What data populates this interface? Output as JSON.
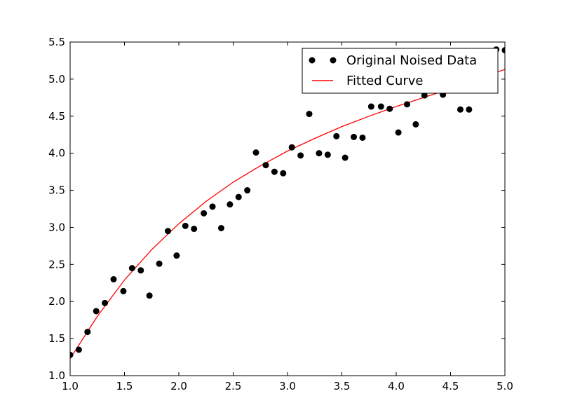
{
  "chart_data": {
    "type": "scatter",
    "title": "",
    "xlabel": "",
    "ylabel": "",
    "xlim": [
      1.0,
      5.0
    ],
    "ylim": [
      1.0,
      5.5
    ],
    "x_ticks": [
      "1.0",
      "1.5",
      "2.0",
      "2.5",
      "3.0",
      "3.5",
      "4.0",
      "4.5",
      "5.0"
    ],
    "y_ticks": [
      "1.0",
      "1.5",
      "2.0",
      "2.5",
      "3.0",
      "3.5",
      "4.0",
      "4.5",
      "5.0",
      "5.5"
    ],
    "grid": false,
    "legend_position": "top-right",
    "series": [
      {
        "name": "Original Noised Data",
        "kind": "scatter",
        "color": "#000000",
        "x": [
          1.0,
          1.08,
          1.16,
          1.24,
          1.32,
          1.4,
          1.49,
          1.57,
          1.65,
          1.73,
          1.82,
          1.9,
          1.98,
          2.06,
          2.14,
          2.23,
          2.31,
          2.39,
          2.47,
          2.55,
          2.63,
          2.71,
          2.8,
          2.88,
          2.96,
          3.04,
          3.12,
          3.2,
          3.29,
          3.37,
          3.45,
          3.53,
          3.61,
          3.69,
          3.77,
          3.86,
          3.94,
          4.02,
          4.1,
          4.18,
          4.26,
          4.35,
          4.43,
          4.51,
          4.59,
          4.67,
          4.75,
          4.84,
          4.92,
          5.0
        ],
        "y": [
          1.28,
          1.35,
          1.59,
          1.87,
          1.98,
          2.3,
          2.14,
          2.45,
          2.42,
          2.08,
          2.51,
          2.95,
          2.62,
          3.02,
          2.98,
          3.19,
          3.28,
          2.99,
          3.31,
          3.41,
          3.5,
          4.01,
          3.84,
          3.75,
          3.73,
          4.08,
          3.97,
          4.53,
          4.0,
          3.98,
          4.23,
          3.94,
          4.22,
          4.21,
          4.63,
          4.63,
          4.6,
          4.28,
          4.66,
          4.39,
          4.78,
          4.85,
          4.79,
          4.89,
          4.59,
          4.59,
          4.85,
          5.11,
          5.4,
          5.39
        ]
      },
      {
        "name": "Fitted Curve",
        "kind": "line",
        "color": "#ff0000",
        "x": [
          1.0,
          1.25,
          1.5,
          1.75,
          2.0,
          2.25,
          2.5,
          2.75,
          3.0,
          3.25,
          3.5,
          3.75,
          4.0,
          4.25,
          4.5,
          4.75,
          5.0
        ],
        "y": [
          1.23,
          1.8,
          2.29,
          2.7,
          3.05,
          3.35,
          3.61,
          3.83,
          4.03,
          4.2,
          4.36,
          4.5,
          4.63,
          4.75,
          4.87,
          5.01,
          5.13
        ]
      }
    ]
  }
}
